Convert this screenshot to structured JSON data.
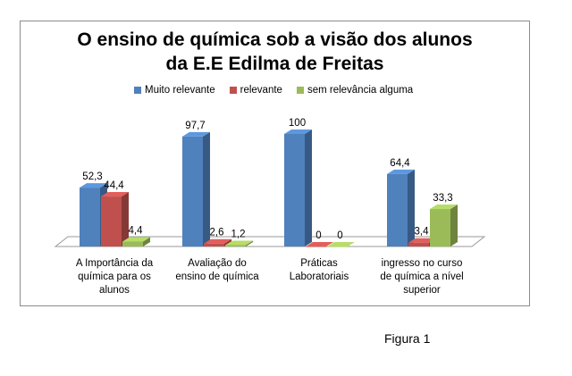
{
  "chart_data": {
    "type": "bar",
    "title": [
      "O ensino de química sob a visão dos alunos",
      "da E.E Edilma de Freitas"
    ],
    "categories": [
      [
        "A Importância da",
        "química para os",
        "alunos"
      ],
      [
        "Avaliação do",
        "ensino de química"
      ],
      [
        "Práticas",
        "Laboratoriais"
      ],
      [
        "ingresso no curso",
        "de química a nível",
        "superior"
      ]
    ],
    "series": [
      {
        "name": "Muito relevante",
        "color": "#4f81bd",
        "values": [
          52.3,
          97.7,
          100,
          64.4
        ],
        "labels": [
          "52,3",
          "97,7",
          "100",
          "64,4"
        ]
      },
      {
        "name": "relevante",
        "color": "#c0504d",
        "values": [
          44.4,
          2.6,
          0,
          3.4
        ],
        "labels": [
          "44,4",
          "2,6",
          "0",
          "3,4"
        ]
      },
      {
        "name": "sem relevância alguma",
        "color": "#9bbb59",
        "values": [
          4.4,
          1.2,
          0,
          33.3
        ],
        "labels": [
          "4,4",
          "1,2",
          "0",
          "33,3"
        ]
      }
    ],
    "ylim": [
      0,
      100
    ],
    "style": "3d-column",
    "legend": "top",
    "grid": false
  },
  "caption": "Figura 1"
}
